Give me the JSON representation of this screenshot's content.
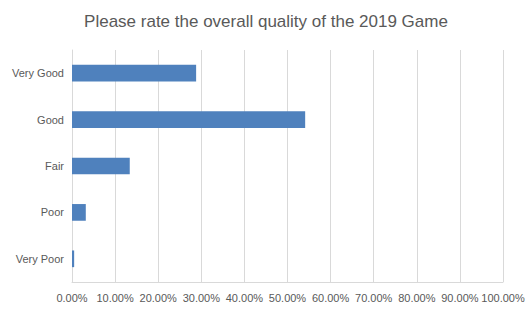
{
  "chart_data": {
    "type": "bar",
    "orientation": "horizontal",
    "title": "Please rate the overall quality of the 2019 Game",
    "categories": [
      "Very Good",
      "Good",
      "Fair",
      "Poor",
      "Very Poor"
    ],
    "values": [
      28.8,
      54.1,
      13.4,
      3.2,
      0.5
    ],
    "color": "#4f81bd",
    "xlim": [
      0,
      100
    ],
    "xticks": [
      {
        "value": 0,
        "label": "0.00%"
      },
      {
        "value": 10,
        "label": "10.00%"
      },
      {
        "value": 20,
        "label": "20.00%"
      },
      {
        "value": 30,
        "label": "30.00%"
      },
      {
        "value": 40,
        "label": "40.00%"
      },
      {
        "value": 50,
        "label": "50.00%"
      },
      {
        "value": 60,
        "label": "60.00%"
      },
      {
        "value": 70,
        "label": "70.00%"
      },
      {
        "value": 80,
        "label": "80.00%"
      },
      {
        "value": 90,
        "label": "90.00%"
      },
      {
        "value": 100,
        "label": "100.00%"
      }
    ],
    "grid": true
  }
}
